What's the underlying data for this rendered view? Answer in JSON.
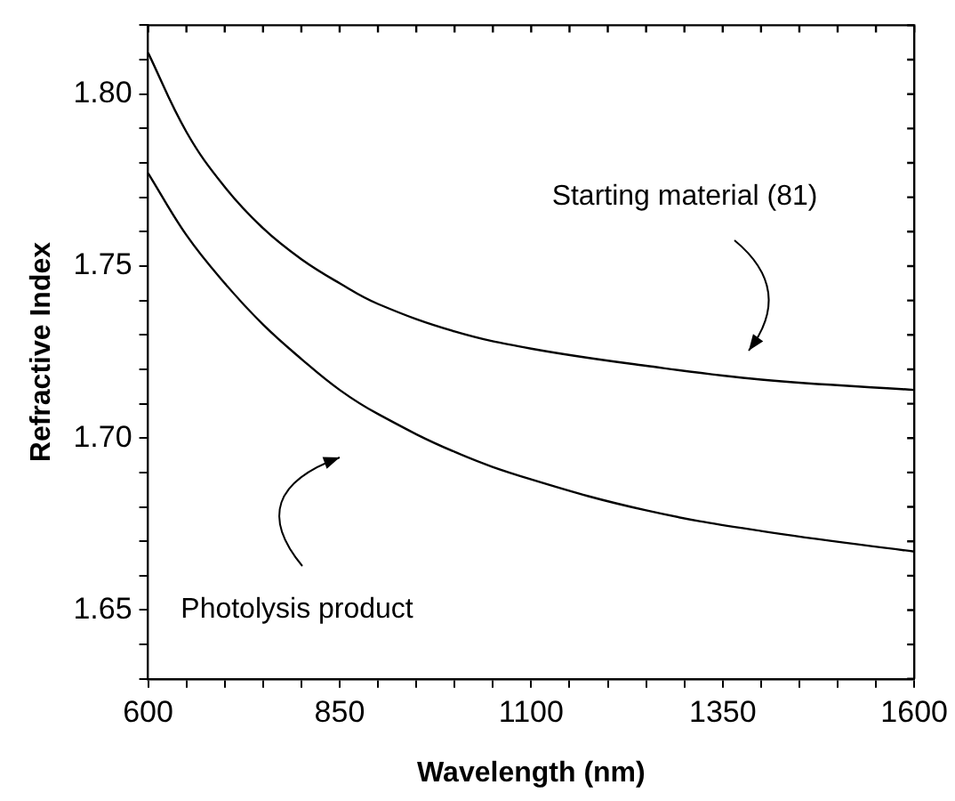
{
  "chart_data": {
    "type": "line",
    "xlabel": "Wavelength (nm)",
    "ylabel": "Refractive Index",
    "xlim": [
      600,
      1600
    ],
    "ylim": [
      1.63,
      1.82
    ],
    "xticks": [
      600,
      {
        "value": 650,
        "label": null
      },
      {
        "value": 700,
        "label": null
      },
      {
        "value": 750,
        "label": null
      },
      {
        "value": 800,
        "label": null
      },
      850,
      {
        "value": 900,
        "label": null
      },
      {
        "value": 950,
        "label": null
      },
      {
        "value": 1000,
        "label": null
      },
      {
        "value": 1050,
        "label": null
      },
      1100,
      {
        "value": 1150,
        "label": null
      },
      {
        "value": 1200,
        "label": null
      },
      {
        "value": 1250,
        "label": null
      },
      {
        "value": 1300,
        "label": null
      },
      1350,
      {
        "value": 1400,
        "label": null
      },
      {
        "value": 1450,
        "label": null
      },
      {
        "value": 1500,
        "label": null
      },
      {
        "value": 1550,
        "label": null
      },
      1600
    ],
    "yticks": [
      {
        "value": 1.63,
        "label": null
      },
      {
        "value": 1.64,
        "label": null
      },
      {
        "value": 1.65,
        "label": "1.65"
      },
      {
        "value": 1.66,
        "label": null
      },
      {
        "value": 1.67,
        "label": null
      },
      {
        "value": 1.68,
        "label": null
      },
      {
        "value": 1.69,
        "label": null
      },
      {
        "value": 1.7,
        "label": "1.70"
      },
      {
        "value": 1.71,
        "label": null
      },
      {
        "value": 1.72,
        "label": null
      },
      {
        "value": 1.73,
        "label": null
      },
      {
        "value": 1.74,
        "label": null
      },
      {
        "value": 1.75,
        "label": "1.75"
      },
      {
        "value": 1.76,
        "label": null
      },
      {
        "value": 1.77,
        "label": null
      },
      {
        "value": 1.78,
        "label": null
      },
      {
        "value": 1.79,
        "label": null
      },
      {
        "value": 1.8,
        "label": "1.80"
      },
      {
        "value": 1.81,
        "label": null
      },
      {
        "value": 1.82,
        "label": null
      }
    ],
    "series": [
      {
        "color": "#000000",
        "x": [
          600,
          650,
          700,
          750,
          800,
          850,
          900,
          1000,
          1100,
          1250,
          1400,
          1600
        ],
        "values": [
          1.812,
          1.789,
          1.773,
          1.761,
          1.752,
          1.745,
          1.739,
          1.731,
          1.726,
          1.721,
          1.717,
          1.714
        ]
      },
      {
        "color": "#000000",
        "x": [
          600,
          650,
          700,
          750,
          800,
          850,
          900,
          1000,
          1100,
          1250,
          1400,
          1600
        ],
        "values": [
          1.777,
          1.759,
          1.745,
          1.733,
          1.723,
          1.714,
          1.707,
          1.696,
          1.688,
          1.679,
          1.673,
          1.667
        ]
      }
    ],
    "annotations": [
      "Starting material (81)",
      "Photolysis product"
    ],
    "grid": false,
    "legend": false,
    "marker": "none",
    "line_style": "solid"
  }
}
